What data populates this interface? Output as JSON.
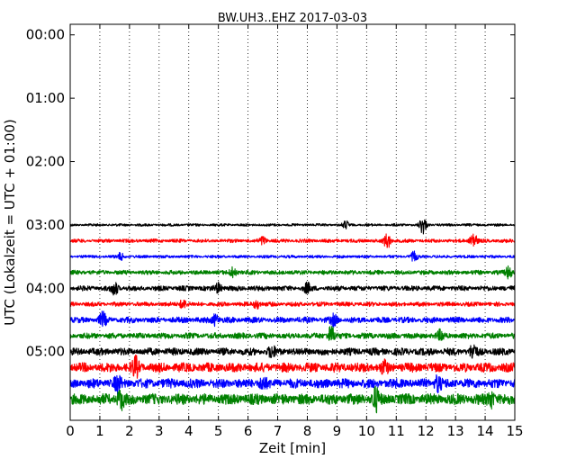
{
  "chart_data": {
    "type": "line",
    "title": "BW.UH3..EHZ 2017-03-03",
    "xlabel": "Zeit  [min]",
    "ylabel": "UTC (Lokalzeit = UTC + 01:00)",
    "xlim": [
      0,
      15
    ],
    "x_ticks": [
      "0",
      "1",
      "2",
      "3",
      "4",
      "5",
      "6",
      "7",
      "8",
      "9",
      "10",
      "11",
      "12",
      "13",
      "14",
      "15"
    ],
    "ylim_minutes": [
      -10,
      365
    ],
    "y_ticks": [
      {
        "label": "00:00",
        "minutes": 0
      },
      {
        "label": "01:00",
        "minutes": 60
      },
      {
        "label": "02:00",
        "minutes": 120
      },
      {
        "label": "03:00",
        "minutes": 180
      },
      {
        "label": "04:00",
        "minutes": 240
      },
      {
        "label": "05:00",
        "minutes": 300
      }
    ],
    "vertical_grid": "dotted at each minute",
    "colors": [
      "#000000",
      "#ff0000",
      "#0000ff",
      "#008000"
    ],
    "traces": [
      {
        "start": "03:00",
        "color": "#000000",
        "amplitude": 0.35,
        "events": [
          {
            "t": 9.3,
            "amp": 1.2
          },
          {
            "t": 11.9,
            "amp": 3.0
          }
        ]
      },
      {
        "start": "03:15",
        "color": "#ff0000",
        "amplitude": 0.5,
        "events": [
          {
            "t": 6.5,
            "amp": 1.4
          },
          {
            "t": 10.7,
            "amp": 2.5
          },
          {
            "t": 13.6,
            "amp": 3.0
          }
        ]
      },
      {
        "start": "03:30",
        "color": "#0000ff",
        "amplitude": 0.4,
        "events": [
          {
            "t": 1.7,
            "amp": 1.2
          },
          {
            "t": 11.6,
            "amp": 1.5
          }
        ]
      },
      {
        "start": "03:45",
        "color": "#008000",
        "amplitude": 0.6,
        "events": [
          {
            "t": 5.5,
            "amp": 1.6
          },
          {
            "t": 14.8,
            "amp": 2.0
          }
        ]
      },
      {
        "start": "04:00",
        "color": "#000000",
        "amplitude": 0.7,
        "events": [
          {
            "t": 1.5,
            "amp": 2.2
          },
          {
            "t": 5.0,
            "amp": 1.6
          },
          {
            "t": 8.0,
            "amp": 1.5
          }
        ]
      },
      {
        "start": "04:15",
        "color": "#ff0000",
        "amplitude": 0.6,
        "events": [
          {
            "t": 3.8,
            "amp": 1.6
          },
          {
            "t": 6.3,
            "amp": 1.5
          }
        ]
      },
      {
        "start": "04:30",
        "color": "#0000ff",
        "amplitude": 0.8,
        "events": [
          {
            "t": 1.1,
            "amp": 2.3
          },
          {
            "t": 4.9,
            "amp": 1.8
          },
          {
            "t": 8.9,
            "amp": 1.6
          }
        ]
      },
      {
        "start": "04:45",
        "color": "#008000",
        "amplitude": 0.8,
        "events": [
          {
            "t": 8.8,
            "amp": 3.2
          },
          {
            "t": 12.5,
            "amp": 1.6
          }
        ]
      },
      {
        "start": "05:00",
        "color": "#000000",
        "amplitude": 1.0,
        "events": [
          {
            "t": 6.8,
            "amp": 1.8
          },
          {
            "t": 13.6,
            "amp": 2.5
          }
        ]
      },
      {
        "start": "05:15",
        "color": "#ff0000",
        "amplitude": 1.3,
        "events": [
          {
            "t": 2.2,
            "amp": 3.0
          },
          {
            "t": 10.6,
            "amp": 1.8
          }
        ]
      },
      {
        "start": "05:30",
        "color": "#0000ff",
        "amplitude": 1.3,
        "events": [
          {
            "t": 1.6,
            "amp": 2.2
          },
          {
            "t": 6.5,
            "amp": 2.0
          },
          {
            "t": 12.4,
            "amp": 2.4
          }
        ]
      },
      {
        "start": "05:45",
        "color": "#008000",
        "amplitude": 1.5,
        "events": [
          {
            "t": 1.7,
            "amp": 3.0
          },
          {
            "t": 10.3,
            "amp": 3.5
          },
          {
            "t": 14.2,
            "amp": 2.6
          }
        ]
      }
    ]
  }
}
